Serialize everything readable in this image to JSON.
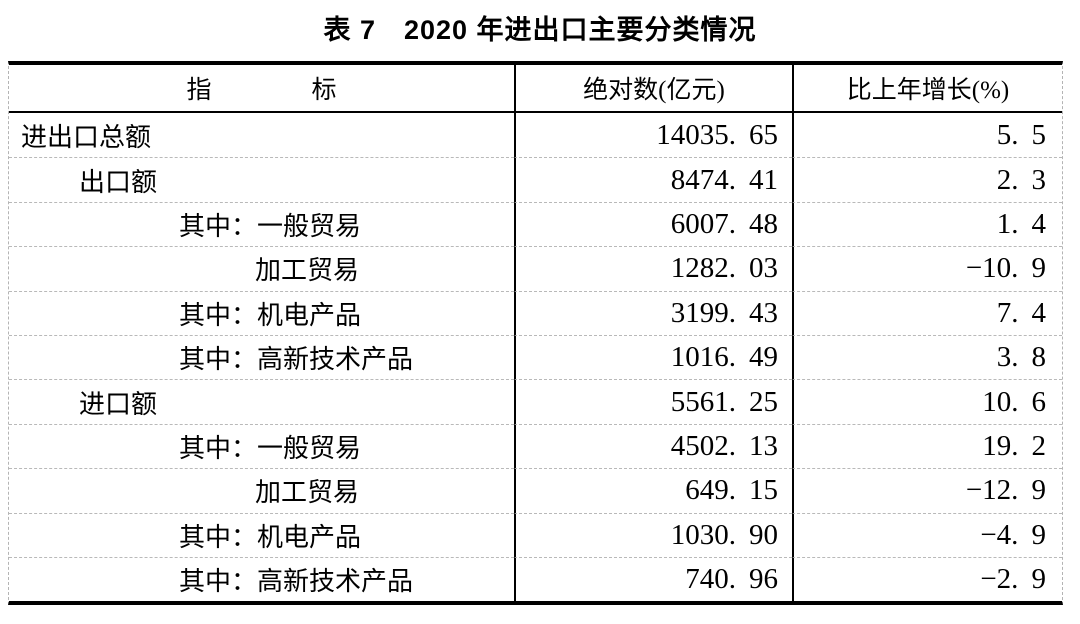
{
  "page": {
    "title": "表 7　2020 年进出口主要分类情况"
  },
  "table": {
    "headers": {
      "indicator": "指　　　　标",
      "absolute": "绝对数(亿元)",
      "growth": "比上年增长(%)"
    },
    "rows": [
      {
        "label": "进出口总额",
        "indent": 0,
        "absolute": "14035.65",
        "growth": "5.5"
      },
      {
        "label": "出口额",
        "indent": 1,
        "absolute": "8474.41",
        "growth": "2.3"
      },
      {
        "label": "其中：一般贸易",
        "indent": 2,
        "absolute": "6007.48",
        "growth": "1.4"
      },
      {
        "label": "加工贸易",
        "indent": 3,
        "absolute": "1282.03",
        "growth": "-10.9"
      },
      {
        "label": "其中：机电产品",
        "indent": 2,
        "absolute": "3199.43",
        "growth": "7.4"
      },
      {
        "label": "其中：高新技术产品",
        "indent": 2,
        "absolute": "1016.49",
        "growth": "3.8"
      },
      {
        "label": "进口额",
        "indent": 1,
        "absolute": "5561.25",
        "growth": "10.6"
      },
      {
        "label": "其中：一般贸易",
        "indent": 2,
        "absolute": "4502.13",
        "growth": "19.2"
      },
      {
        "label": "加工贸易",
        "indent": 3,
        "absolute": "649.15",
        "growth": "-12.9"
      },
      {
        "label": "其中：机电产品",
        "indent": 2,
        "absolute": "1030.90",
        "growth": "-4.9"
      },
      {
        "label": "其中：高新技术产品",
        "indent": 2,
        "absolute": "740.96",
        "growth": "-2.9"
      }
    ],
    "units": {
      "absolute_unit": "亿元",
      "growth_unit": "%"
    }
  }
}
